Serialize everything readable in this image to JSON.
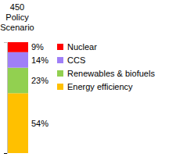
{
  "chart_data": {
    "type": "bar",
    "title": "450 Policy Scenario",
    "stacked": true,
    "data_labels": true,
    "categories": [
      null
    ],
    "series": [
      {
        "name": "Energy efficiency",
        "color": "#ffc000",
        "values": [
          54
        ],
        "value_labels": [
          "54%"
        ]
      },
      {
        "name": "Renewables & biofuels",
        "color": "#92d050",
        "values": [
          23
        ],
        "value_labels": [
          "23%"
        ]
      },
      {
        "name": "CCS",
        "color": "#9f7ff7",
        "values": [
          14
        ],
        "value_labels": [
          "14%"
        ]
      },
      {
        "name": "Nuclear",
        "color": "#ff0000",
        "values": [
          9
        ],
        "value_labels": [
          "9%"
        ]
      }
    ],
    "ylim": [
      0,
      100
    ],
    "yticks": [
      0
    ],
    "tick_labels": false,
    "legend": "right"
  }
}
